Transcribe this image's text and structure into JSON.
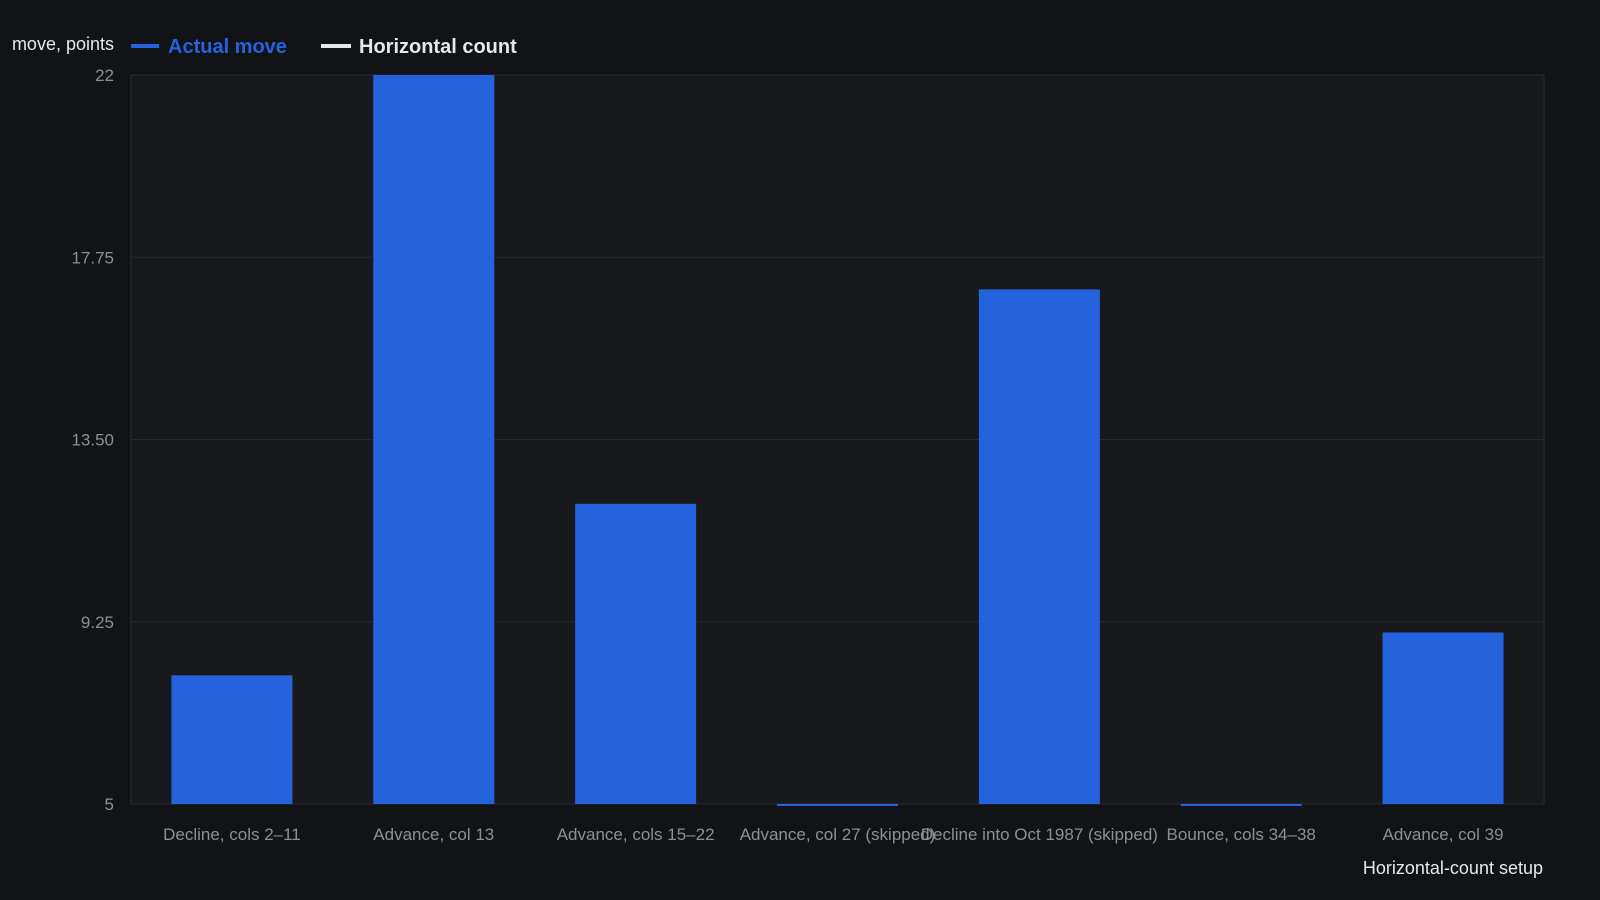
{
  "colors": {
    "background": "#111317",
    "plot_background": "#17191d",
    "grid": "#262a30",
    "bar": "#2563de",
    "legend_actual": "#2563de",
    "legend_horizontal": "#e6e7ea"
  },
  "chart_data": {
    "type": "bar",
    "title": "",
    "xlabel": "Horizontal-count setup",
    "ylabel": "move, points",
    "legend": {
      "placement": "top-left",
      "entries": [
        {
          "name": "Actual move",
          "color": "#2563de"
        },
        {
          "name": "Horizontal count",
          "color": "#e6e7ea"
        }
      ]
    },
    "ylim": [
      5,
      22
    ],
    "yticks": [
      "5",
      "9.25",
      "13.50",
      "17.75",
      "22"
    ],
    "ytick_values": [
      5,
      9.25,
      13.5,
      17.75,
      22
    ],
    "grid": true,
    "categories": [
      "Decline, cols 2–11",
      "Advance, col 13",
      "Advance, cols 15–22",
      "Advance, col 27 (skipped)",
      "Decline into Oct 1987 (skipped)",
      "Bounce, cols 34–38",
      "Advance, col 39"
    ],
    "series": [
      {
        "name": "Actual move",
        "values": [
          8,
          22,
          12,
          5,
          17,
          5,
          9
        ]
      }
    ]
  }
}
